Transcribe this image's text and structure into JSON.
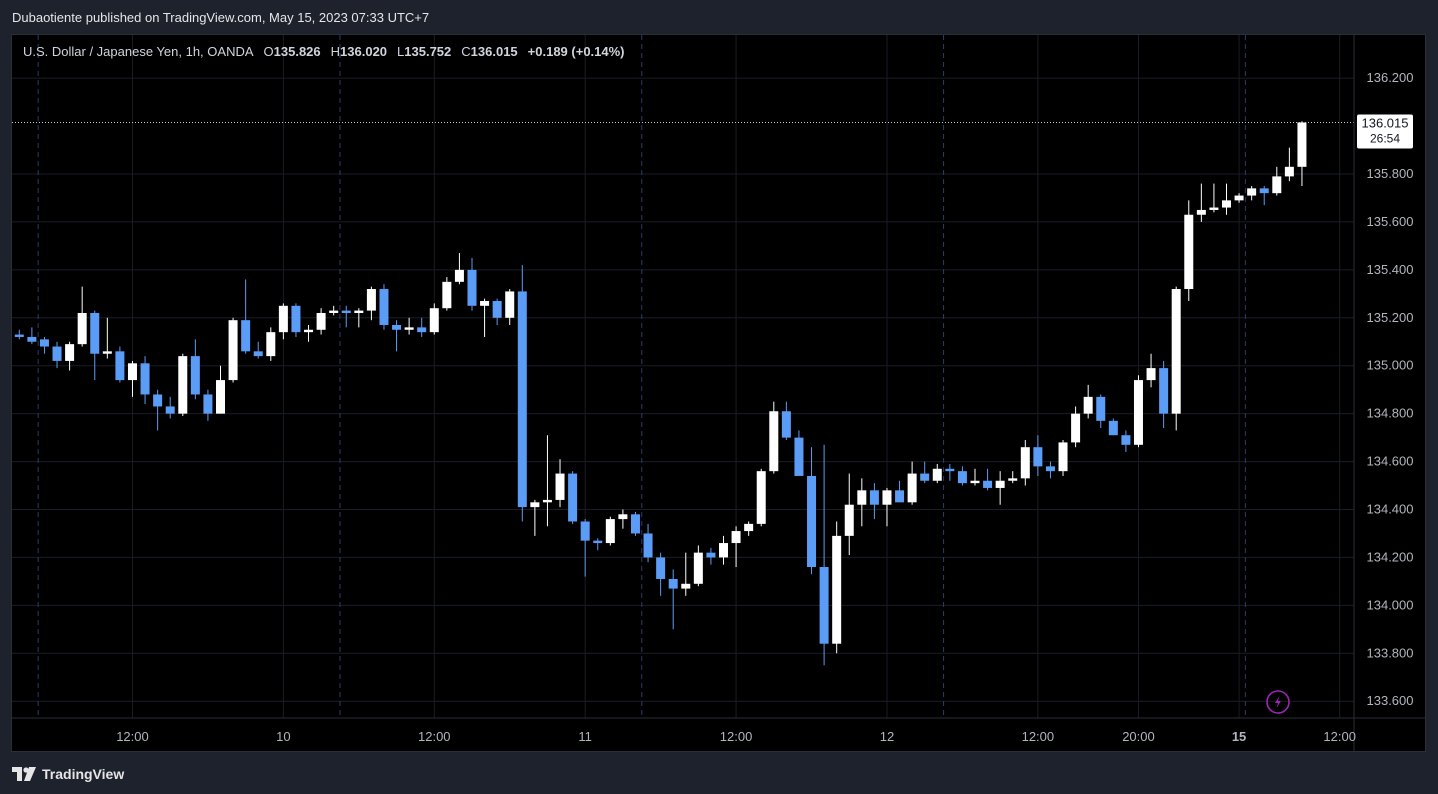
{
  "header": {
    "publisher_line": "Dubaotiente published on TradingView.com, May 15, 2023 07:33 UTC+7"
  },
  "symbol": {
    "name": "U.S. Dollar / Japanese Yen, 1h, OANDA",
    "o_label": "O",
    "o_value": "135.826",
    "h_label": "H",
    "h_value": "136.020",
    "l_label": "L",
    "l_value": "135.752",
    "c_label": "C",
    "c_value": "136.015",
    "change": "+0.189 (+0.14%)"
  },
  "price_tag": {
    "price": "136.015",
    "countdown": "26:54"
  },
  "footer": {
    "brand": "TradingView"
  },
  "colors": {
    "up": "#ffffff",
    "down": "#5b9cf6",
    "background": "#000000",
    "grid": "#1a1d26"
  },
  "chart_data": {
    "type": "candlestick",
    "y_ticks": [
      "136.200",
      "135.800",
      "135.600",
      "135.400",
      "135.200",
      "135.000",
      "134.800",
      "134.600",
      "134.400",
      "134.200",
      "134.000",
      "133.800",
      "133.600"
    ],
    "y_tick_values": [
      136.2,
      135.8,
      135.6,
      135.4,
      135.2,
      135.0,
      134.8,
      134.6,
      134.4,
      134.2,
      134.0,
      133.8,
      133.6
    ],
    "ylim": [
      133.53,
      136.38
    ],
    "x_ticks": [
      {
        "label": "12:00",
        "bar": 9,
        "bold": false
      },
      {
        "label": "10",
        "bar": 21,
        "bold": false
      },
      {
        "label": "12:00",
        "bar": 33,
        "bold": false
      },
      {
        "label": "11",
        "bar": 45,
        "bold": false
      },
      {
        "label": "12:00",
        "bar": 57,
        "bold": false
      },
      {
        "label": "12",
        "bar": 69,
        "bold": false
      },
      {
        "label": "12:00",
        "bar": 81,
        "bold": false
      },
      {
        "label": "20:00",
        "bar": 89,
        "bold": false
      },
      {
        "label": "15",
        "bar": 97,
        "bold": true
      },
      {
        "label": "12:00",
        "bar": 105,
        "bold": false
      }
    ],
    "day_separators_bar": [
      1.5,
      25.5,
      49.5,
      73.5,
      97.5
    ],
    "last_price": 136.015,
    "candles": [
      [
        135.13,
        135.15,
        135.11,
        135.12
      ],
      [
        135.12,
        135.16,
        135.09,
        135.1
      ],
      [
        135.11,
        135.12,
        135.05,
        135.08
      ],
      [
        135.08,
        135.1,
        134.99,
        135.02
      ],
      [
        135.02,
        135.1,
        134.98,
        135.09
      ],
      [
        135.09,
        135.33,
        135.08,
        135.22
      ],
      [
        135.22,
        135.23,
        134.94,
        135.05
      ],
      [
        135.05,
        135.2,
        135.03,
        135.06
      ],
      [
        135.06,
        135.08,
        134.93,
        134.94
      ],
      [
        134.94,
        135.02,
        134.87,
        135.01
      ],
      [
        135.01,
        135.04,
        134.84,
        134.88
      ],
      [
        134.88,
        134.9,
        134.73,
        134.83
      ],
      [
        134.83,
        134.87,
        134.78,
        134.8
      ],
      [
        134.8,
        135.05,
        134.79,
        135.04
      ],
      [
        135.04,
        135.11,
        134.86,
        134.88
      ],
      [
        134.88,
        134.9,
        134.77,
        134.8
      ],
      [
        134.8,
        135.0,
        134.8,
        134.94
      ],
      [
        134.94,
        135.2,
        134.93,
        135.19
      ],
      [
        135.19,
        135.36,
        135.05,
        135.06
      ],
      [
        135.06,
        135.1,
        135.03,
        135.04
      ],
      [
        135.04,
        135.16,
        135.02,
        135.14
      ],
      [
        135.14,
        135.26,
        135.11,
        135.25
      ],
      [
        135.25,
        135.26,
        135.12,
        135.14
      ],
      [
        135.14,
        135.17,
        135.1,
        135.15
      ],
      [
        135.15,
        135.24,
        135.13,
        135.22
      ],
      [
        135.22,
        135.25,
        135.21,
        135.23
      ],
      [
        135.23,
        135.25,
        135.16,
        135.22
      ],
      [
        135.22,
        135.24,
        135.16,
        135.23
      ],
      [
        135.23,
        135.33,
        135.19,
        135.32
      ],
      [
        135.32,
        135.34,
        135.15,
        135.17
      ],
      [
        135.17,
        135.19,
        135.06,
        135.15
      ],
      [
        135.15,
        135.2,
        135.13,
        135.16
      ],
      [
        135.16,
        135.2,
        135.12,
        135.14
      ],
      [
        135.14,
        135.26,
        135.13,
        135.24
      ],
      [
        135.24,
        135.37,
        135.23,
        135.35
      ],
      [
        135.35,
        135.47,
        135.34,
        135.4
      ],
      [
        135.4,
        135.45,
        135.23,
        135.25
      ],
      [
        135.25,
        135.28,
        135.12,
        135.27
      ],
      [
        135.27,
        135.28,
        135.17,
        135.2
      ],
      [
        135.2,
        135.32,
        135.17,
        135.31
      ],
      [
        135.31,
        135.42,
        134.35,
        134.41
      ],
      [
        134.41,
        134.44,
        134.29,
        134.43
      ],
      [
        134.43,
        134.71,
        134.33,
        134.44
      ],
      [
        134.44,
        134.61,
        134.41,
        134.55
      ],
      [
        134.55,
        134.56,
        134.34,
        134.35
      ],
      [
        134.35,
        134.36,
        134.12,
        134.27
      ],
      [
        134.27,
        134.28,
        134.23,
        134.26
      ],
      [
        134.26,
        134.37,
        134.25,
        134.36
      ],
      [
        134.36,
        134.4,
        134.32,
        134.38
      ],
      [
        134.38,
        134.39,
        134.29,
        134.3
      ],
      [
        134.3,
        134.34,
        134.18,
        134.2
      ],
      [
        134.2,
        134.22,
        134.04,
        134.11
      ],
      [
        134.11,
        134.15,
        133.9,
        134.07
      ],
      [
        134.07,
        134.22,
        134.04,
        134.09
      ],
      [
        134.09,
        134.25,
        134.08,
        134.22
      ],
      [
        134.22,
        134.24,
        134.17,
        134.2
      ],
      [
        134.2,
        134.29,
        134.17,
        134.26
      ],
      [
        134.26,
        134.33,
        134.16,
        134.31
      ],
      [
        134.31,
        134.35,
        134.29,
        134.34
      ],
      [
        134.34,
        134.57,
        134.33,
        134.56
      ],
      [
        134.56,
        134.85,
        134.55,
        134.81
      ],
      [
        134.81,
        134.85,
        134.69,
        134.7
      ],
      [
        134.7,
        134.73,
        134.55,
        134.54
      ],
      [
        134.54,
        134.66,
        134.13,
        134.16
      ],
      [
        134.16,
        134.67,
        133.75,
        133.84
      ],
      [
        133.84,
        134.35,
        133.8,
        134.29
      ],
      [
        134.29,
        134.55,
        134.21,
        134.42
      ],
      [
        134.42,
        134.53,
        134.33,
        134.48
      ],
      [
        134.48,
        134.51,
        134.36,
        134.42
      ],
      [
        134.42,
        134.49,
        134.33,
        134.48
      ],
      [
        134.48,
        134.52,
        134.43,
        134.43
      ],
      [
        134.43,
        134.6,
        134.42,
        134.55
      ],
      [
        134.55,
        134.6,
        134.51,
        134.52
      ],
      [
        134.52,
        134.59,
        134.51,
        134.57
      ],
      [
        134.57,
        134.59,
        134.52,
        134.56
      ],
      [
        134.56,
        134.58,
        134.5,
        134.51
      ],
      [
        134.51,
        134.57,
        134.5,
        134.52
      ],
      [
        134.52,
        134.57,
        134.48,
        134.49
      ],
      [
        134.49,
        134.56,
        134.42,
        134.52
      ],
      [
        134.52,
        134.56,
        134.51,
        134.53
      ],
      [
        134.53,
        134.69,
        134.5,
        134.66
      ],
      [
        134.66,
        134.71,
        134.54,
        134.58
      ],
      [
        134.58,
        134.6,
        134.53,
        134.56
      ],
      [
        134.56,
        134.69,
        134.54,
        134.68
      ],
      [
        134.68,
        134.83,
        134.66,
        134.8
      ],
      [
        134.8,
        134.92,
        134.78,
        134.87
      ],
      [
        134.87,
        134.88,
        134.74,
        134.77
      ],
      [
        134.77,
        134.78,
        134.71,
        134.71
      ],
      [
        134.71,
        134.73,
        134.64,
        134.67
      ],
      [
        134.67,
        134.96,
        134.66,
        134.94
      ],
      [
        134.94,
        135.05,
        134.91,
        134.99
      ],
      [
        134.99,
        135.02,
        134.74,
        134.8
      ],
      [
        134.8,
        135.33,
        134.73,
        135.32
      ],
      [
        135.32,
        135.69,
        135.27,
        135.63
      ],
      [
        135.63,
        135.76,
        135.6,
        135.65
      ],
      [
        135.65,
        135.76,
        135.64,
        135.66
      ],
      [
        135.66,
        135.76,
        135.63,
        135.69
      ],
      [
        135.69,
        135.72,
        135.68,
        135.71
      ],
      [
        135.71,
        135.75,
        135.69,
        135.74
      ],
      [
        135.74,
        135.75,
        135.67,
        135.72
      ],
      [
        135.72,
        135.83,
        135.71,
        135.79
      ],
      [
        135.79,
        135.91,
        135.77,
        135.83
      ],
      [
        135.83,
        136.02,
        135.75,
        136.015
      ]
    ]
  }
}
